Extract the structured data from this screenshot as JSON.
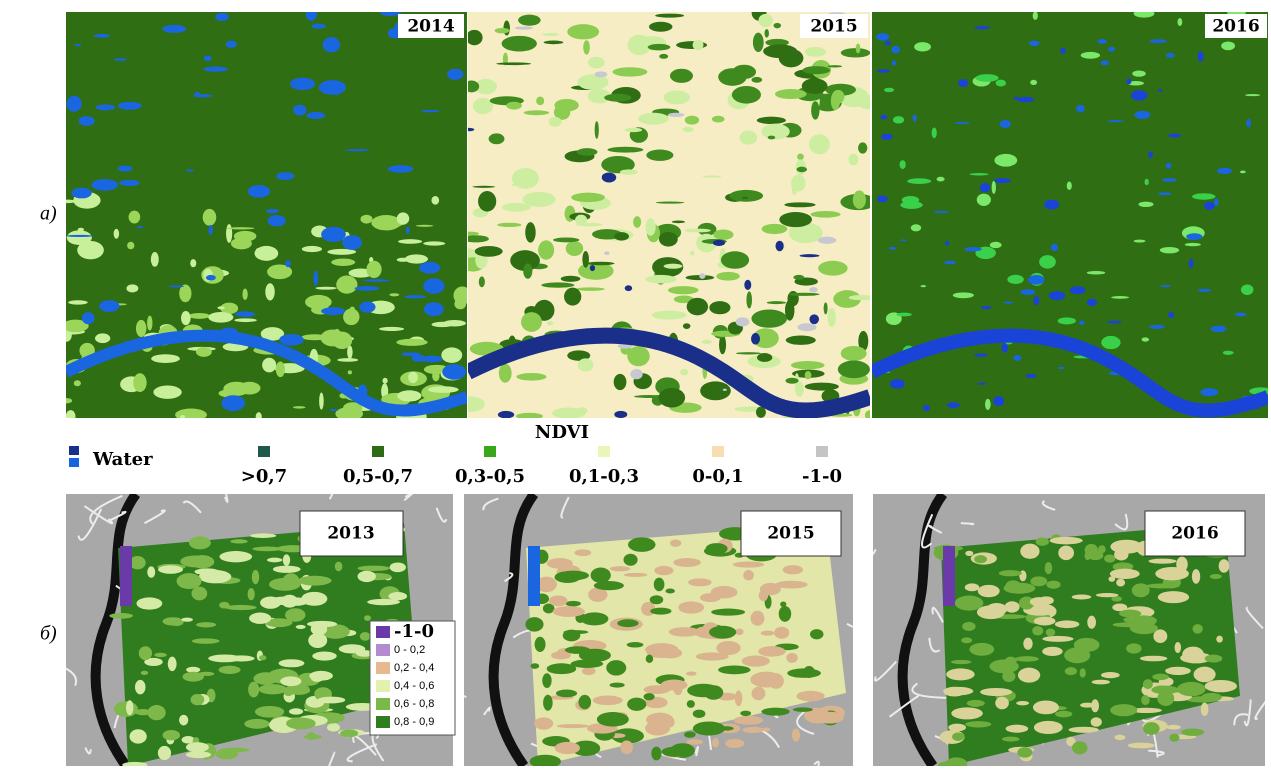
{
  "row_labels": [
    "a)",
    "б)"
  ],
  "top_panels": [
    {
      "year": "2014"
    },
    {
      "year": "2015"
    },
    {
      "year": "2016"
    }
  ],
  "legend": {
    "title": "NDVI",
    "water": "Water",
    "items": [
      ">0,7",
      "0,5-0,7",
      "0,3-0,5",
      "0,1-0,3",
      "0-0,1",
      "-1-0"
    ]
  },
  "bottom_panels": [
    {
      "year": "2013"
    },
    {
      "year": "2015"
    },
    {
      "year": "2016"
    }
  ],
  "inner_legend": {
    "items": [
      "-1-0",
      "0 - 0,2",
      "0,2 - 0,4",
      "0,4 - 0,6",
      "0,6 - 0,8",
      "0,8 - 0,9"
    ]
  }
}
